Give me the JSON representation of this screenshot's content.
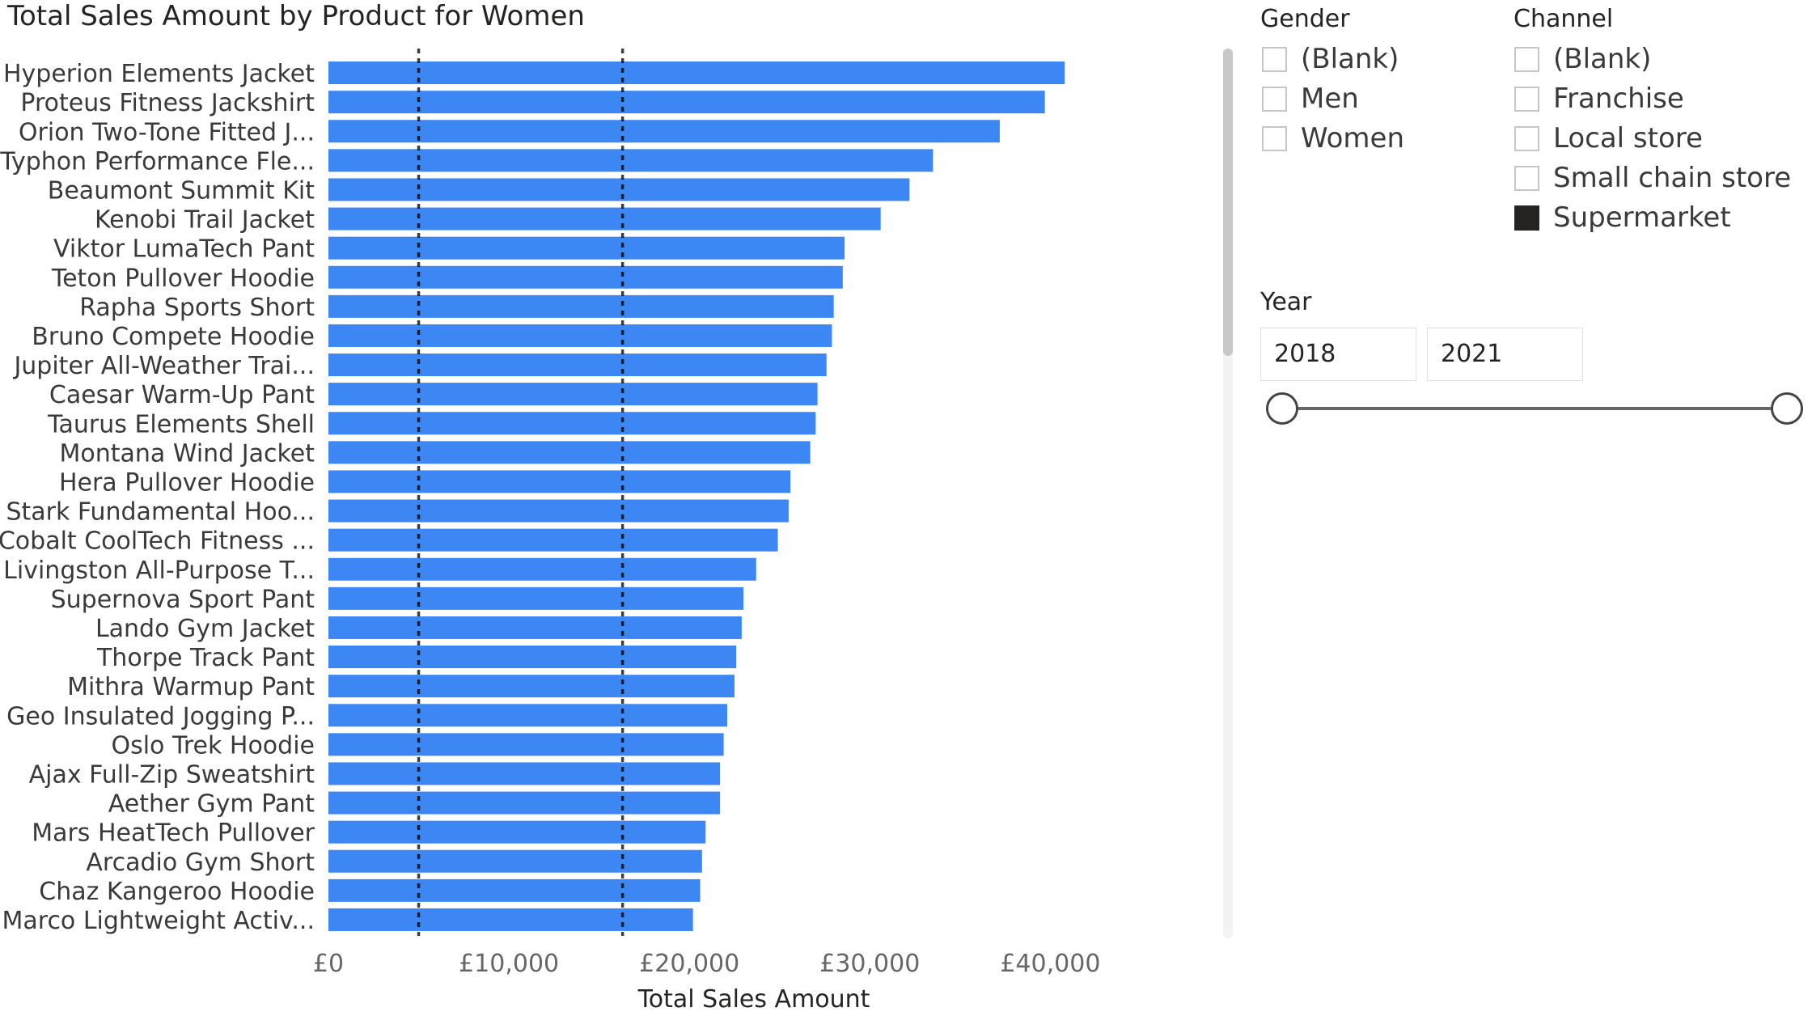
{
  "chart_data": {
    "type": "bar",
    "orientation": "horizontal",
    "title": "Total Sales Amount by Product for Women",
    "xlabel": "Total Sales Amount",
    "ylabel": "",
    "xlim": [
      0,
      42000
    ],
    "x_ticks": [
      0,
      10000,
      20000,
      30000,
      40000
    ],
    "x_tick_labels": [
      "£0",
      "£10,000",
      "£20,000",
      "£30,000",
      "£40,000"
    ],
    "reference_lines": [
      5000,
      16300
    ],
    "bar_color": "#3d87f5",
    "categories": [
      "Hyperion Elements Jacket",
      "Proteus Fitness Jackshirt",
      "Orion Two-Tone Fitted J...",
      "Typhon Performance Fle...",
      "Beaumont Summit Kit",
      "Kenobi Trail Jacket",
      "Viktor LumaTech Pant",
      "Teton Pullover Hoodie",
      "Rapha Sports Short",
      "Bruno Compete Hoodie",
      "Jupiter All-Weather Trai...",
      "Caesar Warm-Up Pant",
      "Taurus Elements Shell",
      "Montana Wind Jacket",
      "Hera Pullover Hoodie",
      "Stark Fundamental Hoo...",
      "Cobalt CoolTech Fitness ...",
      "Livingston All-Purpose T...",
      "Supernova Sport Pant",
      "Lando Gym Jacket",
      "Thorpe Track Pant",
      "Mithra Warmup Pant",
      "Geo Insulated Jogging P...",
      "Oslo Trek Hoodie",
      "Ajax Full-Zip Sweatshirt",
      "Aether Gym Pant",
      "Mars HeatTech Pullover",
      "Arcadio Gym Short",
      "Chaz Kangeroo Hoodie",
      "Marco Lightweight Activ..."
    ],
    "values": [
      40800,
      39700,
      37200,
      33500,
      32200,
      30600,
      28600,
      28500,
      28000,
      27900,
      27600,
      27100,
      27000,
      26700,
      25600,
      25500,
      24900,
      23700,
      23000,
      22900,
      22600,
      22500,
      22100,
      21900,
      21700,
      21700,
      20900,
      20700,
      20600,
      20200
    ]
  },
  "slicers": {
    "gender": {
      "title": "Gender",
      "items": [
        {
          "label": "(Blank)",
          "checked": false
        },
        {
          "label": "Men",
          "checked": false
        },
        {
          "label": "Women",
          "checked": false
        }
      ]
    },
    "channel": {
      "title": "Channel",
      "items": [
        {
          "label": "(Blank)",
          "checked": false
        },
        {
          "label": "Franchise",
          "checked": false
        },
        {
          "label": "Local store",
          "checked": false
        },
        {
          "label": "Small chain store",
          "checked": false
        },
        {
          "label": "Supermarket",
          "checked": true
        }
      ]
    },
    "year": {
      "title": "Year",
      "start": "2018",
      "end": "2021",
      "range": [
        0,
        1
      ]
    }
  }
}
